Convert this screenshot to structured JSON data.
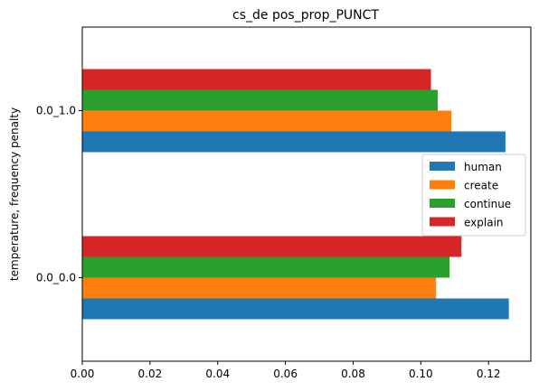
{
  "chart_data": {
    "type": "bar",
    "orientation": "horizontal",
    "title": "cs_de pos_prop_PUNCT",
    "xlabel": "",
    "ylabel": "temperature, frequency penalty",
    "categories": [
      "0.0_0.0",
      "0.0_1.0"
    ],
    "series": [
      {
        "name": "human",
        "color": "#1f77b4",
        "values": [
          0.126,
          0.125
        ]
      },
      {
        "name": "create",
        "color": "#ff7f0e",
        "values": [
          0.1045,
          0.109
        ]
      },
      {
        "name": "continue",
        "color": "#2ca02c",
        "values": [
          0.1085,
          0.105
        ]
      },
      {
        "name": "explain",
        "color": "#d62728",
        "values": [
          0.112,
          0.103
        ]
      }
    ],
    "xlim": [
      0,
      0.1325
    ],
    "xticks": [
      "0.00",
      "0.02",
      "0.04",
      "0.06",
      "0.08",
      "0.10",
      "0.12"
    ],
    "grid": false,
    "legend_position": "center-right"
  }
}
